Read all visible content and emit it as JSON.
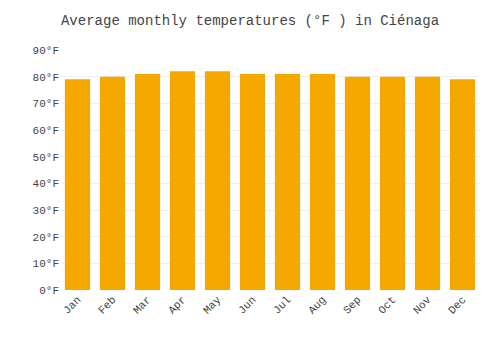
{
  "chart_data": {
    "type": "bar",
    "title": "Average monthly temperatures (°F ) in Ciénaga",
    "categories": [
      "Jan",
      "Feb",
      "Mar",
      "Apr",
      "May",
      "Jun",
      "Jul",
      "Aug",
      "Sep",
      "Oct",
      "Nov",
      "Dec"
    ],
    "values": [
      79,
      80,
      81,
      82,
      82,
      81,
      81,
      81,
      80,
      80,
      80,
      79
    ],
    "color": "#F5A800",
    "ylim": [
      0,
      90
    ],
    "yticks": [
      {
        "value": 0,
        "label": "0°F"
      },
      {
        "value": 10,
        "label": "10°F"
      },
      {
        "value": 20,
        "label": "20°F"
      },
      {
        "value": 30,
        "label": "30°F"
      },
      {
        "value": 40,
        "label": "40°F"
      },
      {
        "value": 50,
        "label": "50°F"
      },
      {
        "value": 60,
        "label": "60°F"
      },
      {
        "value": 70,
        "label": "70°F"
      },
      {
        "value": 80,
        "label": "80°F"
      },
      {
        "value": 90,
        "label": "90°F"
      }
    ],
    "grid": true
  }
}
